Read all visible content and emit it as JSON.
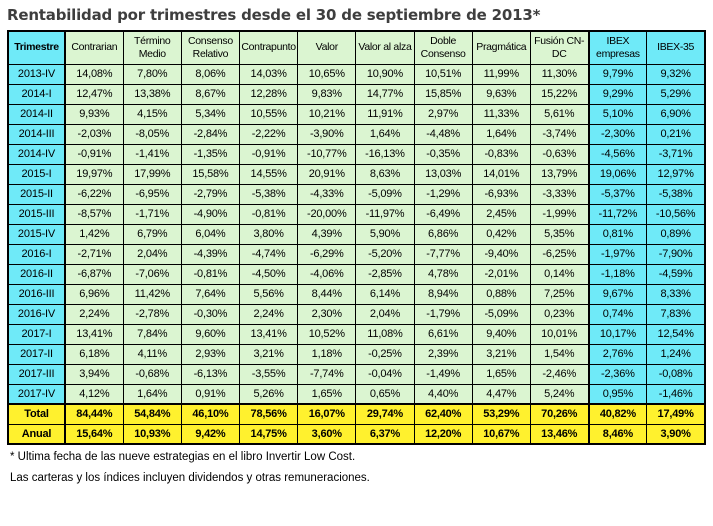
{
  "title": "Rentabilidad por trimestres desde el 30 de septiembre de 2013*",
  "footnotes": [
    "* Ultima fecha de las nueve estrategias en el libro Invertir Low Cost.",
    "Las carteras y los índices incluyen dividendos y otras remuneraciones."
  ],
  "colors": {
    "cyan": "#6FEAF8",
    "green": "#DBF5D1",
    "yellow": "#FFF12E",
    "border": "#000000",
    "title_text": "#3E3E3E"
  },
  "chart_data": {
    "type": "table",
    "title": "Rentabilidad por trimestres desde el 30 de septiembre de 2013*",
    "columns": [
      "Trimestre",
      "Contrarian",
      "Término Medio",
      "Consenso Relativo",
      "Contrapunto",
      "Valor",
      "Valor al alza",
      "Doble Consenso",
      "Pragmática",
      "Fusión CN-DC",
      "IBEX empresas",
      "IBEX-35"
    ],
    "rows": [
      {
        "label": "2013-IV",
        "values": [
          "14,08%",
          "7,80%",
          "8,06%",
          "14,03%",
          "10,65%",
          "10,90%",
          "10,51%",
          "11,99%",
          "11,30%",
          "9,79%",
          "9,32%"
        ]
      },
      {
        "label": "2014-I",
        "values": [
          "12,47%",
          "13,38%",
          "8,67%",
          "12,28%",
          "9,83%",
          "14,77%",
          "15,85%",
          "9,63%",
          "15,22%",
          "9,29%",
          "5,29%"
        ]
      },
      {
        "label": "2014-II",
        "values": [
          "9,93%",
          "4,15%",
          "5,34%",
          "10,55%",
          "10,21%",
          "11,91%",
          "2,97%",
          "11,33%",
          "5,61%",
          "5,10%",
          "6,90%"
        ]
      },
      {
        "label": "2014-III",
        "values": [
          "-2,03%",
          "-8,05%",
          "-2,84%",
          "-2,22%",
          "-3,90%",
          "1,64%",
          "-4,48%",
          "1,64%",
          "-3,74%",
          "-2,30%",
          "0,21%"
        ]
      },
      {
        "label": "2014-IV",
        "values": [
          "-0,91%",
          "-1,41%",
          "-1,35%",
          "-0,91%",
          "-10,77%",
          "-16,13%",
          "-0,35%",
          "-0,83%",
          "-0,63%",
          "-4,56%",
          "-3,71%"
        ]
      },
      {
        "label": "2015-I",
        "values": [
          "19,97%",
          "17,99%",
          "15,58%",
          "14,55%",
          "20,91%",
          "8,63%",
          "13,03%",
          "14,01%",
          "13,79%",
          "19,06%",
          "12,97%"
        ]
      },
      {
        "label": "2015-II",
        "values": [
          "-6,22%",
          "-6,95%",
          "-2,79%",
          "-5,38%",
          "-4,33%",
          "-5,09%",
          "-1,29%",
          "-6,93%",
          "-3,33%",
          "-5,37%",
          "-5,38%"
        ]
      },
      {
        "label": "2015-III",
        "values": [
          "-8,57%",
          "-1,71%",
          "-4,90%",
          "-0,81%",
          "-20,00%",
          "-11,97%",
          "-6,49%",
          "2,45%",
          "-1,99%",
          "-11,72%",
          "-10,56%"
        ]
      },
      {
        "label": "2015-IV",
        "values": [
          "1,42%",
          "6,79%",
          "6,04%",
          "3,80%",
          "4,39%",
          "5,90%",
          "6,86%",
          "0,42%",
          "5,35%",
          "0,81%",
          "0,89%"
        ]
      },
      {
        "label": "2016-I",
        "values": [
          "-2,71%",
          "2,04%",
          "-4,39%",
          "-4,74%",
          "-6,29%",
          "-5,20%",
          "-7,77%",
          "-9,40%",
          "-6,25%",
          "-1,97%",
          "-7,90%"
        ]
      },
      {
        "label": "2016-II",
        "values": [
          "-6,87%",
          "-7,06%",
          "-0,81%",
          "-4,50%",
          "-4,06%",
          "-2,85%",
          "4,78%",
          "-2,01%",
          "0,14%",
          "-1,18%",
          "-4,59%"
        ]
      },
      {
        "label": "2016-III",
        "values": [
          "6,96%",
          "11,42%",
          "7,64%",
          "5,56%",
          "8,44%",
          "6,14%",
          "8,94%",
          "0,88%",
          "7,25%",
          "9,67%",
          "8,33%"
        ]
      },
      {
        "label": "2016-IV",
        "values": [
          "2,24%",
          "-2,78%",
          "-0,30%",
          "2,24%",
          "2,30%",
          "2,04%",
          "-1,79%",
          "-5,09%",
          "0,23%",
          "0,74%",
          "7,83%"
        ]
      },
      {
        "label": "2017-I",
        "values": [
          "13,41%",
          "7,84%",
          "9,60%",
          "13,41%",
          "10,52%",
          "11,08%",
          "6,61%",
          "9,40%",
          "10,01%",
          "10,17%",
          "12,54%"
        ]
      },
      {
        "label": "2017-II",
        "values": [
          "6,18%",
          "4,11%",
          "2,93%",
          "3,21%",
          "1,18%",
          "-0,25%",
          "2,39%",
          "3,21%",
          "1,54%",
          "2,76%",
          "1,24%"
        ]
      },
      {
        "label": "2017-III",
        "values": [
          "3,94%",
          "-0,68%",
          "-6,13%",
          "-3,55%",
          "-7,74%",
          "-0,04%",
          "-1,49%",
          "1,65%",
          "-2,46%",
          "-2,36%",
          "-0,08%"
        ]
      },
      {
        "label": "2017-IV",
        "values": [
          "4,12%",
          "1,64%",
          "0,91%",
          "5,26%",
          "1,65%",
          "0,65%",
          "4,40%",
          "4,47%",
          "5,24%",
          "0,95%",
          "-1,46%"
        ]
      }
    ],
    "summary_rows": [
      {
        "label": "Total",
        "values": [
          "84,44%",
          "54,84%",
          "46,10%",
          "78,56%",
          "16,07%",
          "29,74%",
          "62,40%",
          "53,29%",
          "70,26%",
          "40,82%",
          "17,49%"
        ]
      },
      {
        "label": "Anual",
        "values": [
          "15,64%",
          "10,93%",
          "9,42%",
          "14,75%",
          "3,60%",
          "6,37%",
          "12,20%",
          "10,67%",
          "13,46%",
          "8,46%",
          "3,90%"
        ]
      }
    ]
  }
}
